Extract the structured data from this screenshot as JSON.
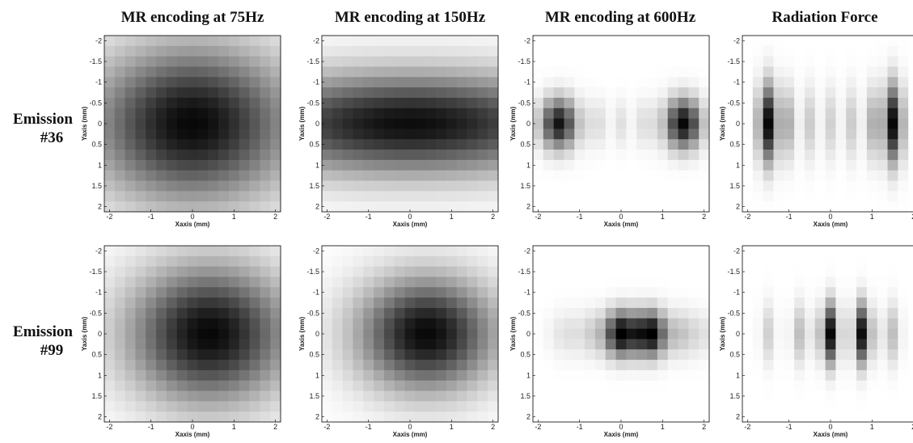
{
  "figure": {
    "column_titles": [
      "MR encoding at 75Hz",
      "MR encoding at 150Hz",
      "MR encoding at 600Hz",
      "Radiation Force"
    ],
    "row_labels": [
      {
        "line1": "Emission",
        "line2": "#36"
      },
      {
        "line1": "Emission",
        "line2": "#99"
      }
    ]
  },
  "chart_data": {
    "type": "heatmap",
    "grid_size": 17,
    "colormap": "gray-inverted (white = low, black = high)",
    "x_axis_label": "Xaxis (mm)",
    "y_axis_label": "Yaxis (mm)",
    "xlim": [
      -2.125,
      2.125
    ],
    "ylim": [
      -2.125,
      2.125
    ],
    "y_reversed": true,
    "x_ticks": [
      {
        "v": -2,
        "t": "-2"
      },
      {
        "v": -1,
        "t": "-1"
      },
      {
        "v": 0,
        "t": "0"
      },
      {
        "v": 1,
        "t": "1"
      },
      {
        "v": 2,
        "t": "2"
      }
    ],
    "y_ticks": [
      {
        "v": -2,
        "t": "-2"
      },
      {
        "v": -1.5,
        "t": "-1.5"
      },
      {
        "v": -1,
        "t": "-1"
      },
      {
        "v": -0.5,
        "t": "-0.5"
      },
      {
        "v": 0,
        "t": "0"
      },
      {
        "v": 0.5,
        "t": "0.5"
      },
      {
        "v": 1,
        "t": "1"
      },
      {
        "v": 1.5,
        "t": "1.5"
      },
      {
        "v": 2,
        "t": "2"
      }
    ],
    "panels": [
      {
        "row": 0,
        "col": 0,
        "blobs": [
          {
            "x": 0,
            "y": 0,
            "sx": 1.7,
            "sy": 1.3,
            "a": 0.97
          }
        ]
      },
      {
        "row": 0,
        "col": 1,
        "blobs": [
          {
            "x": 0,
            "y": 0,
            "sx": 3.0,
            "sy": 0.85,
            "a": 0.95
          }
        ]
      },
      {
        "row": 0,
        "col": 2,
        "blobs": [
          {
            "x": -1.5,
            "y": 0,
            "sx": 0.3,
            "sy": 0.42,
            "a": 0.92
          },
          {
            "x": 1.5,
            "y": 0,
            "sx": 0.3,
            "sy": 0.42,
            "a": 0.97
          },
          {
            "x": -0.6,
            "y": 0,
            "sx": 0.15,
            "sy": 0.4,
            "a": 0.15
          },
          {
            "x": 0,
            "y": 0,
            "sx": 0.15,
            "sy": 0.4,
            "a": 0.12
          },
          {
            "x": 0.6,
            "y": 0,
            "sx": 0.15,
            "sy": 0.4,
            "a": 0.15
          }
        ]
      },
      {
        "row": 0,
        "col": 3,
        "blobs": [
          {
            "x": -1.5,
            "y": 0,
            "sx": 0.16,
            "sy": 0.65,
            "a": 0.97
          },
          {
            "x": 1.5,
            "y": 0,
            "sx": 0.16,
            "sy": 0.65,
            "a": 0.97
          },
          {
            "x": -1.0,
            "y": 0,
            "sx": 0.12,
            "sy": 0.6,
            "a": 0.3
          },
          {
            "x": -0.5,
            "y": 0,
            "sx": 0.12,
            "sy": 0.6,
            "a": 0.2
          },
          {
            "x": 0,
            "y": 0,
            "sx": 0.12,
            "sy": 0.6,
            "a": 0.18
          },
          {
            "x": 0.5,
            "y": 0,
            "sx": 0.12,
            "sy": 0.6,
            "a": 0.2
          },
          {
            "x": 1.0,
            "y": 0,
            "sx": 0.12,
            "sy": 0.6,
            "a": 0.3
          }
        ]
      },
      {
        "row": 1,
        "col": 0,
        "blobs": [
          {
            "x": 0.4,
            "y": 0,
            "sx": 1.35,
            "sy": 1.15,
            "a": 0.97
          }
        ]
      },
      {
        "row": 1,
        "col": 1,
        "blobs": [
          {
            "x": 0.4,
            "y": 0,
            "sx": 1.15,
            "sy": 0.95,
            "a": 0.97
          }
        ]
      },
      {
        "row": 1,
        "col": 2,
        "blobs": [
          {
            "x": -0.05,
            "y": 0,
            "sx": 0.22,
            "sy": 0.38,
            "a": 0.9
          },
          {
            "x": 0.75,
            "y": 0,
            "sx": 0.22,
            "sy": 0.38,
            "a": 0.92
          },
          {
            "x": 0.35,
            "y": 0,
            "sx": 0.22,
            "sy": 0.38,
            "a": 0.55
          },
          {
            "x": -0.6,
            "y": 0,
            "sx": 0.25,
            "sy": 0.38,
            "a": 0.2
          },
          {
            "x": 1.35,
            "y": 0,
            "sx": 0.25,
            "sy": 0.38,
            "a": 0.22
          },
          {
            "x": -1.3,
            "y": 0,
            "sx": 0.3,
            "sy": 0.38,
            "a": 0.12
          },
          {
            "x": 1.9,
            "y": 0,
            "sx": 0.3,
            "sy": 0.38,
            "a": 0.12
          }
        ]
      },
      {
        "row": 1,
        "col": 3,
        "blobs": [
          {
            "x": 0,
            "y": 0,
            "sx": 0.13,
            "sy": 0.5,
            "a": 0.97
          },
          {
            "x": 0.75,
            "y": 0,
            "sx": 0.13,
            "sy": 0.5,
            "a": 0.95
          },
          {
            "x": -0.75,
            "y": 0,
            "sx": 0.13,
            "sy": 0.5,
            "a": 0.25
          },
          {
            "x": -1.5,
            "y": 0,
            "sx": 0.13,
            "sy": 0.5,
            "a": 0.18
          },
          {
            "x": 1.5,
            "y": 0,
            "sx": 0.13,
            "sy": 0.5,
            "a": 0.25
          },
          {
            "x": -0.35,
            "y": 0,
            "sx": 0.1,
            "sy": 0.4,
            "a": 0.15
          },
          {
            "x": 1.1,
            "y": 0,
            "sx": 0.1,
            "sy": 0.4,
            "a": 0.15
          }
        ]
      }
    ]
  }
}
